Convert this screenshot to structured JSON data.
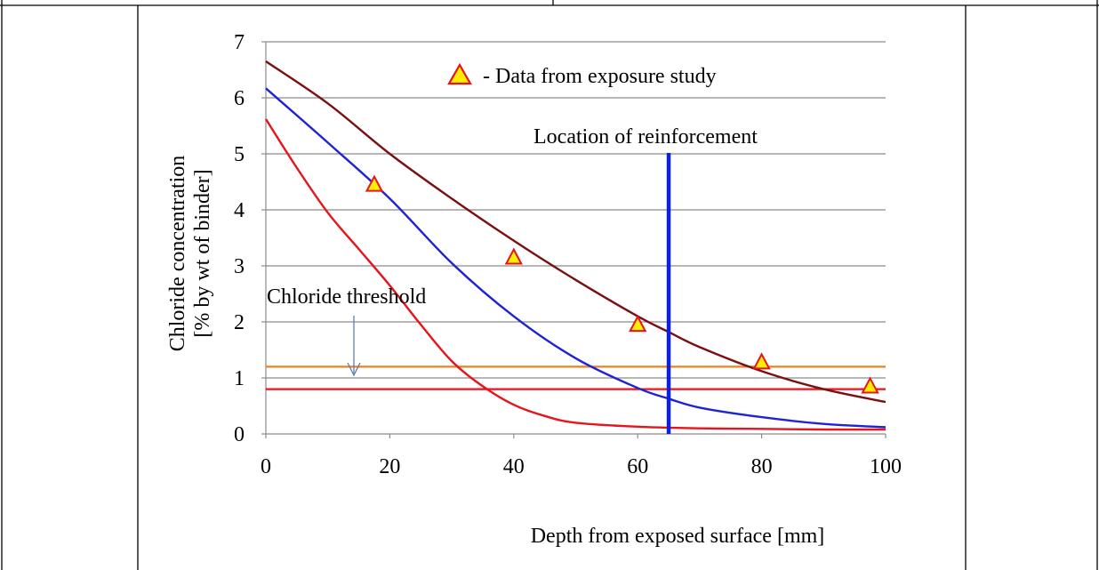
{
  "chart_data": {
    "type": "line",
    "xlabel": "Depth from exposed surface [mm]",
    "ylabel_line1": "Chloride concentration",
    "ylabel_line2": "[% by wt of binder]",
    "xlim": [
      0,
      100
    ],
    "ylim": [
      0,
      7
    ],
    "x_ticks": [
      0,
      20,
      40,
      60,
      80,
      100
    ],
    "y_ticks": [
      0,
      1,
      2,
      3,
      4,
      5,
      6,
      7
    ],
    "grid": "horizontal",
    "legend": {
      "label": "- Data from exposure study",
      "placement": "top-center"
    },
    "annotations": {
      "reinforcement_label": "Location of reinforcement",
      "reinforcement_depth": 65,
      "threshold_label": "Chloride threshold"
    },
    "thresholds": [
      {
        "y": 1.2,
        "color": "#f07f1f"
      },
      {
        "y": 0.8,
        "color": "#e8141c"
      }
    ],
    "series": [
      {
        "color": "#7b0f12",
        "x": [
          0,
          10,
          20,
          30,
          40,
          50,
          60,
          65,
          70,
          80,
          90,
          100
        ],
        "y": [
          6.65,
          5.9,
          5.0,
          4.2,
          3.45,
          2.75,
          2.1,
          1.82,
          1.55,
          1.12,
          0.8,
          0.57
        ]
      },
      {
        "color": "#1f23d6",
        "x": [
          0,
          10,
          20,
          30,
          40,
          50,
          60,
          65,
          70,
          80,
          90,
          100
        ],
        "y": [
          6.17,
          5.2,
          4.2,
          3.05,
          2.1,
          1.35,
          0.82,
          0.63,
          0.47,
          0.3,
          0.18,
          0.12
        ]
      },
      {
        "color": "#e8141c",
        "x": [
          0,
          5,
          10,
          15,
          20,
          25,
          30,
          35,
          40,
          45,
          50,
          60,
          70,
          80,
          90,
          100
        ],
        "y": [
          5.62,
          4.75,
          3.95,
          3.3,
          2.65,
          1.95,
          1.3,
          0.85,
          0.52,
          0.32,
          0.2,
          0.13,
          0.1,
          0.09,
          0.08,
          0.08
        ]
      }
    ],
    "observed": {
      "x": [
        17.5,
        40,
        60,
        80,
        97.5
      ],
      "y": [
        4.45,
        3.15,
        1.95,
        1.28,
        0.85
      ]
    }
  }
}
